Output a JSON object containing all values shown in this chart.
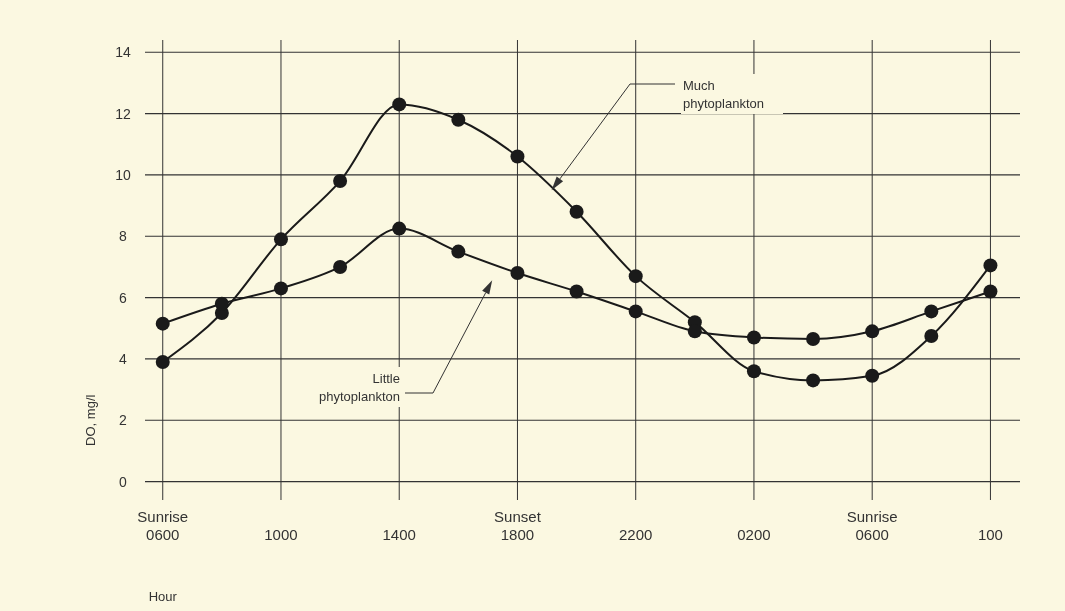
{
  "chart_data": {
    "type": "line",
    "ylabel": "DO, mg/l",
    "xlabel": "Hour",
    "ylim": [
      -0.6,
      14.4
    ],
    "categories": [
      "Sunrise\n0600",
      null,
      "1000",
      null,
      "1400",
      null,
      "Sunset\n1800",
      null,
      "2200",
      null,
      "0200",
      null,
      "Sunrise\n0600",
      null,
      "100"
    ],
    "yticks": [
      0,
      2,
      4,
      6,
      8,
      10,
      12,
      14
    ],
    "series": [
      {
        "color": "#1a1a1a",
        "values": [
          3.9,
          5.5,
          7.9,
          9.8,
          12.3,
          11.8,
          10.6,
          8.8,
          6.7,
          5.2,
          3.6,
          3.3,
          3.45,
          4.75,
          7.05
        ]
      },
      {
        "color": "#1a1a1a",
        "values": [
          5.15,
          5.8,
          6.3,
          7,
          8.25,
          7.5,
          6.8,
          6.2,
          5.55,
          4.9,
          4.7,
          4.65,
          4.9,
          5.55,
          6.2
        ]
      }
    ],
    "annotations": [
      "Much\nphytoplankton",
      "Little\nphytoplankton"
    ],
    "grid": true,
    "marker": "circle",
    "line_style": "solid"
  }
}
